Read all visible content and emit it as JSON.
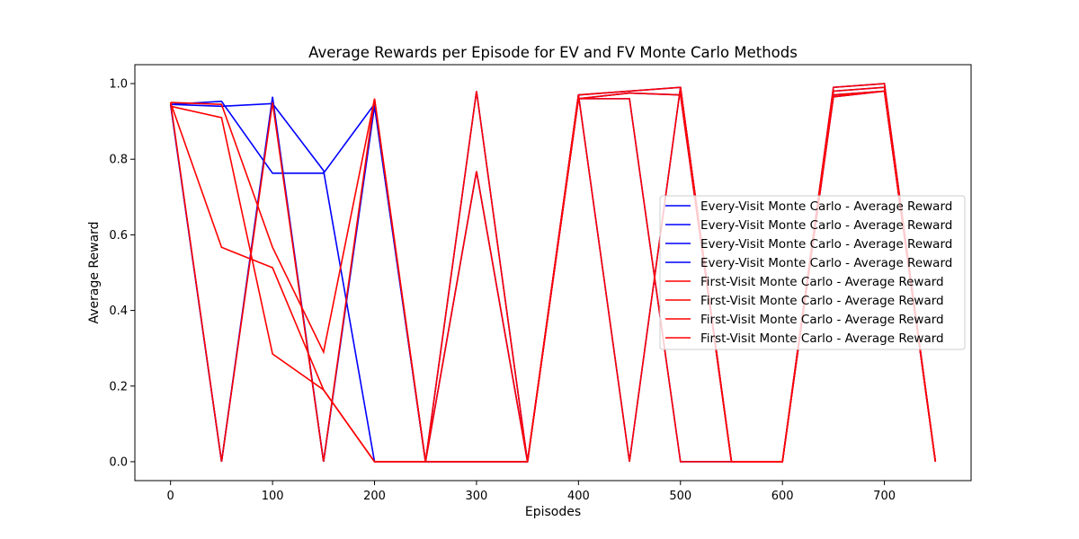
{
  "chart_data": {
    "type": "line",
    "title": "Average Rewards per Episode for EV and FV Monte Carlo Methods",
    "xlabel": "Episodes",
    "ylabel": "Average Reward",
    "xlim": [
      -35,
      785
    ],
    "ylim": [
      -0.05,
      1.05
    ],
    "xticks": [
      0,
      100,
      200,
      300,
      400,
      500,
      600,
      700
    ],
    "yticks": [
      0.0,
      0.2,
      0.4,
      0.6,
      0.8,
      1.0
    ],
    "xtick_labels": [
      "0",
      "100",
      "200",
      "300",
      "400",
      "500",
      "600",
      "700"
    ],
    "ytick_labels": [
      "0.0",
      "0.2",
      "0.4",
      "0.6",
      "0.8",
      "1.0"
    ],
    "grid": false,
    "legend_position": "center-right",
    "x": [
      0,
      50,
      100,
      150,
      200,
      250,
      300,
      350,
      400,
      450,
      500,
      550,
      600,
      650,
      700,
      750
    ],
    "series": [
      {
        "name": "Every-Visit Monte Carlo - Average Reward",
        "color": "#0000ff",
        "values": [
          0.945,
          0.953,
          0.763,
          0.763,
          0.946,
          0.0,
          0.98,
          0.0,
          0.97,
          0.98,
          0.99,
          0.0,
          0.0,
          0.99,
          1.0,
          0.0
        ]
      },
      {
        "name": "Every-Visit Monte Carlo - Average Reward",
        "color": "#0000ff",
        "values": [
          0.945,
          0.94,
          0.947,
          0.77,
          0.0,
          0.0,
          0.0,
          0.0,
          0.97,
          0.0,
          0.99,
          0.0,
          0.0,
          0.98,
          0.99,
          0.0
        ]
      },
      {
        "name": "Every-Visit Monte Carlo - Average Reward",
        "color": "#0000ff",
        "values": [
          0.945,
          0.0,
          0.965,
          0.0,
          0.94,
          0.0,
          0.768,
          0.0,
          0.96,
          0.975,
          0.97,
          0.0,
          0.0,
          0.97,
          0.98,
          0.0
        ]
      },
      {
        "name": "Every-Visit Monte Carlo - Average Reward",
        "color": "#0000ff",
        "values": [
          0.945,
          0.0,
          0.955,
          0.0,
          0.95,
          0.0,
          0.0,
          0.0,
          0.96,
          0.96,
          0.0,
          0.0,
          0.0,
          0.965,
          0.98,
          0.0
        ]
      },
      {
        "name": "First-Visit Monte Carlo - Average Reward",
        "color": "#ff0000",
        "values": [
          0.95,
          0.945,
          0.567,
          0.29,
          0.96,
          0.0,
          0.98,
          0.0,
          0.97,
          0.98,
          0.99,
          0.0,
          0.0,
          0.99,
          1.0,
          0.0
        ]
      },
      {
        "name": "First-Visit Monte Carlo - Average Reward",
        "color": "#ff0000",
        "values": [
          0.95,
          0.567,
          0.513,
          0.19,
          0.0,
          0.0,
          0.0,
          0.0,
          0.97,
          0.0,
          0.99,
          0.0,
          0.0,
          0.98,
          0.99,
          0.0
        ]
      },
      {
        "name": "First-Visit Monte Carlo - Average Reward",
        "color": "#ff0000",
        "values": [
          0.95,
          0.0,
          0.95,
          0.0,
          0.96,
          0.0,
          0.768,
          0.0,
          0.96,
          0.975,
          0.97,
          0.0,
          0.0,
          0.97,
          0.98,
          0.0
        ]
      },
      {
        "name": "First-Visit Monte Carlo - Average Reward",
        "color": "#ff0000",
        "values": [
          0.94,
          0.91,
          0.285,
          0.19,
          0.0,
          0.0,
          0.0,
          0.0,
          0.96,
          0.96,
          0.0,
          0.0,
          0.0,
          0.965,
          0.98,
          0.0
        ]
      }
    ]
  }
}
